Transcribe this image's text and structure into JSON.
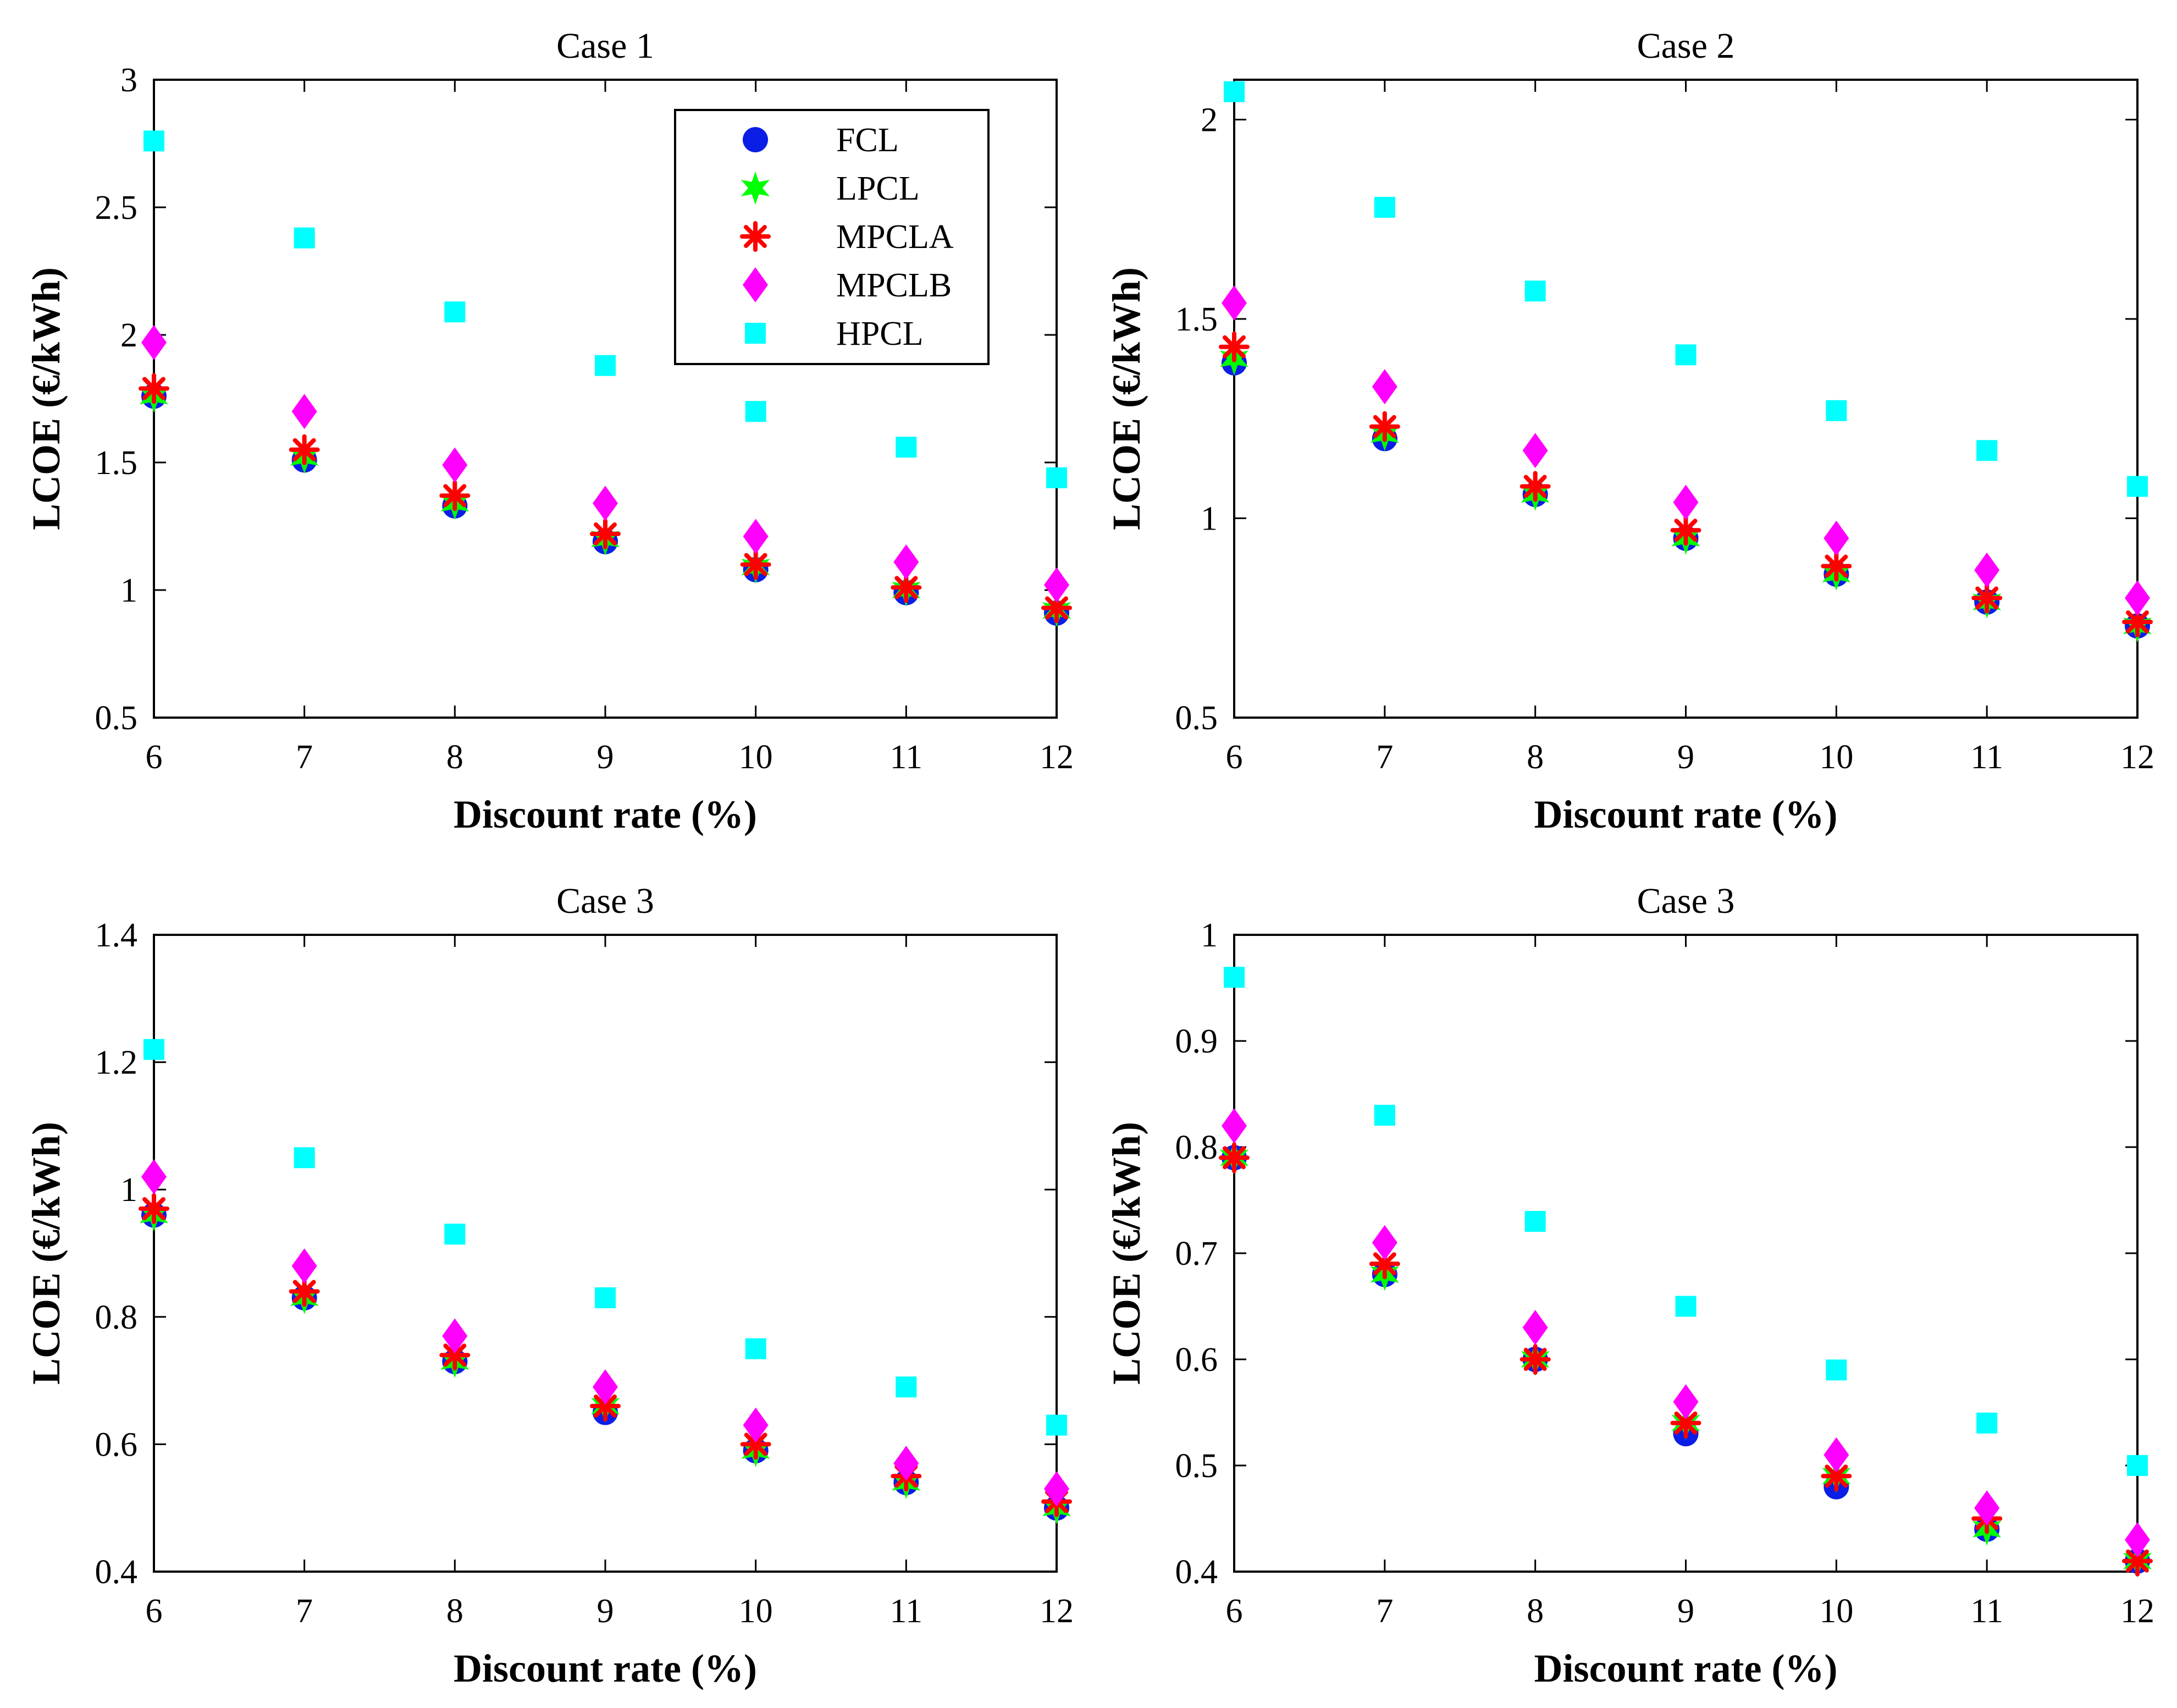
{
  "chart_data": [
    {
      "type": "scatter",
      "title": "Case 1",
      "xlabel": "Discount rate (%)",
      "ylabel": "LCOE (€/kWh)",
      "xlim": [
        6,
        12
      ],
      "ylim": [
        0.5,
        3
      ],
      "xticks": [
        "6",
        "7",
        "8",
        "9",
        "10",
        "11",
        "12"
      ],
      "yticks": [
        "0.5",
        "1",
        "1.5",
        "2",
        "2.5",
        "3"
      ],
      "ytick_values": [
        0.5,
        1,
        1.5,
        2,
        2.5,
        3
      ],
      "x": [
        6,
        7,
        8,
        9,
        10,
        11,
        12
      ],
      "legend": "top-right",
      "series": [
        {
          "name": "FCL",
          "values": [
            1.76,
            1.51,
            1.33,
            1.19,
            1.08,
            0.99,
            0.91
          ]
        },
        {
          "name": "LPCL",
          "values": [
            1.76,
            1.52,
            1.34,
            1.2,
            1.09,
            1.0,
            0.92
          ]
        },
        {
          "name": "MPCLA",
          "values": [
            1.79,
            1.55,
            1.37,
            1.22,
            1.1,
            1.01,
            0.93
          ]
        },
        {
          "name": "MPCLB",
          "values": [
            1.97,
            1.7,
            1.49,
            1.34,
            1.21,
            1.11,
            1.02
          ]
        },
        {
          "name": "HPCL",
          "values": [
            2.76,
            2.38,
            2.09,
            1.88,
            1.7,
            1.56,
            1.44
          ]
        }
      ]
    },
    {
      "type": "scatter",
      "title": "Case 2",
      "xlabel": "Discount rate (%)",
      "ylabel": "LCOE (€/kWh)",
      "xlim": [
        6,
        12
      ],
      "ylim": [
        0.5,
        2.1
      ],
      "xticks": [
        "6",
        "7",
        "8",
        "9",
        "10",
        "11",
        "12"
      ],
      "yticks": [
        "0.5",
        "1",
        "1.5",
        "2"
      ],
      "ytick_values": [
        0.5,
        1,
        1.5,
        2
      ],
      "x": [
        6,
        7,
        8,
        9,
        10,
        11,
        12
      ],
      "series": [
        {
          "name": "FCL",
          "values": [
            1.39,
            1.2,
            1.06,
            0.95,
            0.86,
            0.79,
            0.73
          ]
        },
        {
          "name": "LPCL",
          "values": [
            1.4,
            1.21,
            1.06,
            0.95,
            0.86,
            0.79,
            0.73
          ]
        },
        {
          "name": "MPCLA",
          "values": [
            1.43,
            1.23,
            1.08,
            0.97,
            0.88,
            0.8,
            0.74
          ]
        },
        {
          "name": "MPCLB",
          "values": [
            1.54,
            1.33,
            1.17,
            1.04,
            0.95,
            0.87,
            0.8
          ]
        },
        {
          "name": "HPCL",
          "values": [
            2.07,
            1.78,
            1.57,
            1.41,
            1.27,
            1.17,
            1.08
          ]
        }
      ]
    },
    {
      "type": "scatter",
      "title": "Case 3",
      "xlabel": "Discount rate (%)",
      "ylabel": "LCOE (€/kWh)",
      "xlim": [
        6,
        12
      ],
      "ylim": [
        0.4,
        1.4
      ],
      "xticks": [
        "6",
        "7",
        "8",
        "9",
        "10",
        "11",
        "12"
      ],
      "yticks": [
        "0.4",
        "0.6",
        "0.8",
        "1",
        "1.2",
        "1.4"
      ],
      "ytick_values": [
        0.4,
        0.6,
        0.8,
        1.0,
        1.2,
        1.4
      ],
      "x": [
        6,
        7,
        8,
        9,
        10,
        11,
        12
      ],
      "series": [
        {
          "name": "FCL",
          "values": [
            0.96,
            0.83,
            0.73,
            0.65,
            0.59,
            0.54,
            0.5
          ]
        },
        {
          "name": "LPCL",
          "values": [
            0.96,
            0.83,
            0.73,
            0.66,
            0.59,
            0.54,
            0.5
          ]
        },
        {
          "name": "MPCLA",
          "values": [
            0.97,
            0.84,
            0.74,
            0.66,
            0.6,
            0.55,
            0.51
          ]
        },
        {
          "name": "MPCLB",
          "values": [
            1.02,
            0.88,
            0.77,
            0.69,
            0.63,
            0.57,
            0.53
          ]
        },
        {
          "name": "HPCL",
          "values": [
            1.22,
            1.05,
            0.93,
            0.83,
            0.75,
            0.69,
            0.63
          ]
        }
      ]
    },
    {
      "type": "scatter",
      "title": "Case 3",
      "xlabel": "Discount rate (%)",
      "ylabel": "LCOE (€/kWh)",
      "xlim": [
        6,
        12
      ],
      "ylim": [
        0.4,
        1.0
      ],
      "xticks": [
        "6",
        "7",
        "8",
        "9",
        "10",
        "11",
        "12"
      ],
      "yticks": [
        "0.4",
        "0.5",
        "0.6",
        "0.7",
        "0.8",
        "0.9",
        "1"
      ],
      "ytick_values": [
        0.4,
        0.5,
        0.6,
        0.7,
        0.8,
        0.9,
        1.0
      ],
      "x": [
        6,
        7,
        8,
        9,
        10,
        11,
        12
      ],
      "series": [
        {
          "name": "FCL",
          "values": [
            0.79,
            0.68,
            0.6,
            0.53,
            0.48,
            0.44,
            0.41
          ]
        },
        {
          "name": "LPCL",
          "values": [
            0.79,
            0.68,
            0.6,
            0.54,
            0.49,
            0.44,
            0.41
          ]
        },
        {
          "name": "MPCLA",
          "values": [
            0.79,
            0.69,
            0.6,
            0.54,
            0.49,
            0.45,
            0.41
          ]
        },
        {
          "name": "MPCLB",
          "values": [
            0.82,
            0.71,
            0.63,
            0.56,
            0.51,
            0.46,
            0.43
          ]
        },
        {
          "name": "HPCL",
          "values": [
            0.96,
            0.83,
            0.73,
            0.65,
            0.59,
            0.54,
            0.5
          ]
        }
      ]
    }
  ],
  "series_styles": [
    {
      "name": "FCL",
      "marker": "circle",
      "color": "#0a1ee6"
    },
    {
      "name": "LPCL",
      "marker": "star",
      "color": "#00ff00"
    },
    {
      "name": "MPCLA",
      "marker": "asterisk",
      "color": "#ff0000"
    },
    {
      "name": "MPCLB",
      "marker": "diamond",
      "color": "#ff00ff"
    },
    {
      "name": "HPCL",
      "marker": "square",
      "color": "#00ffff"
    }
  ]
}
